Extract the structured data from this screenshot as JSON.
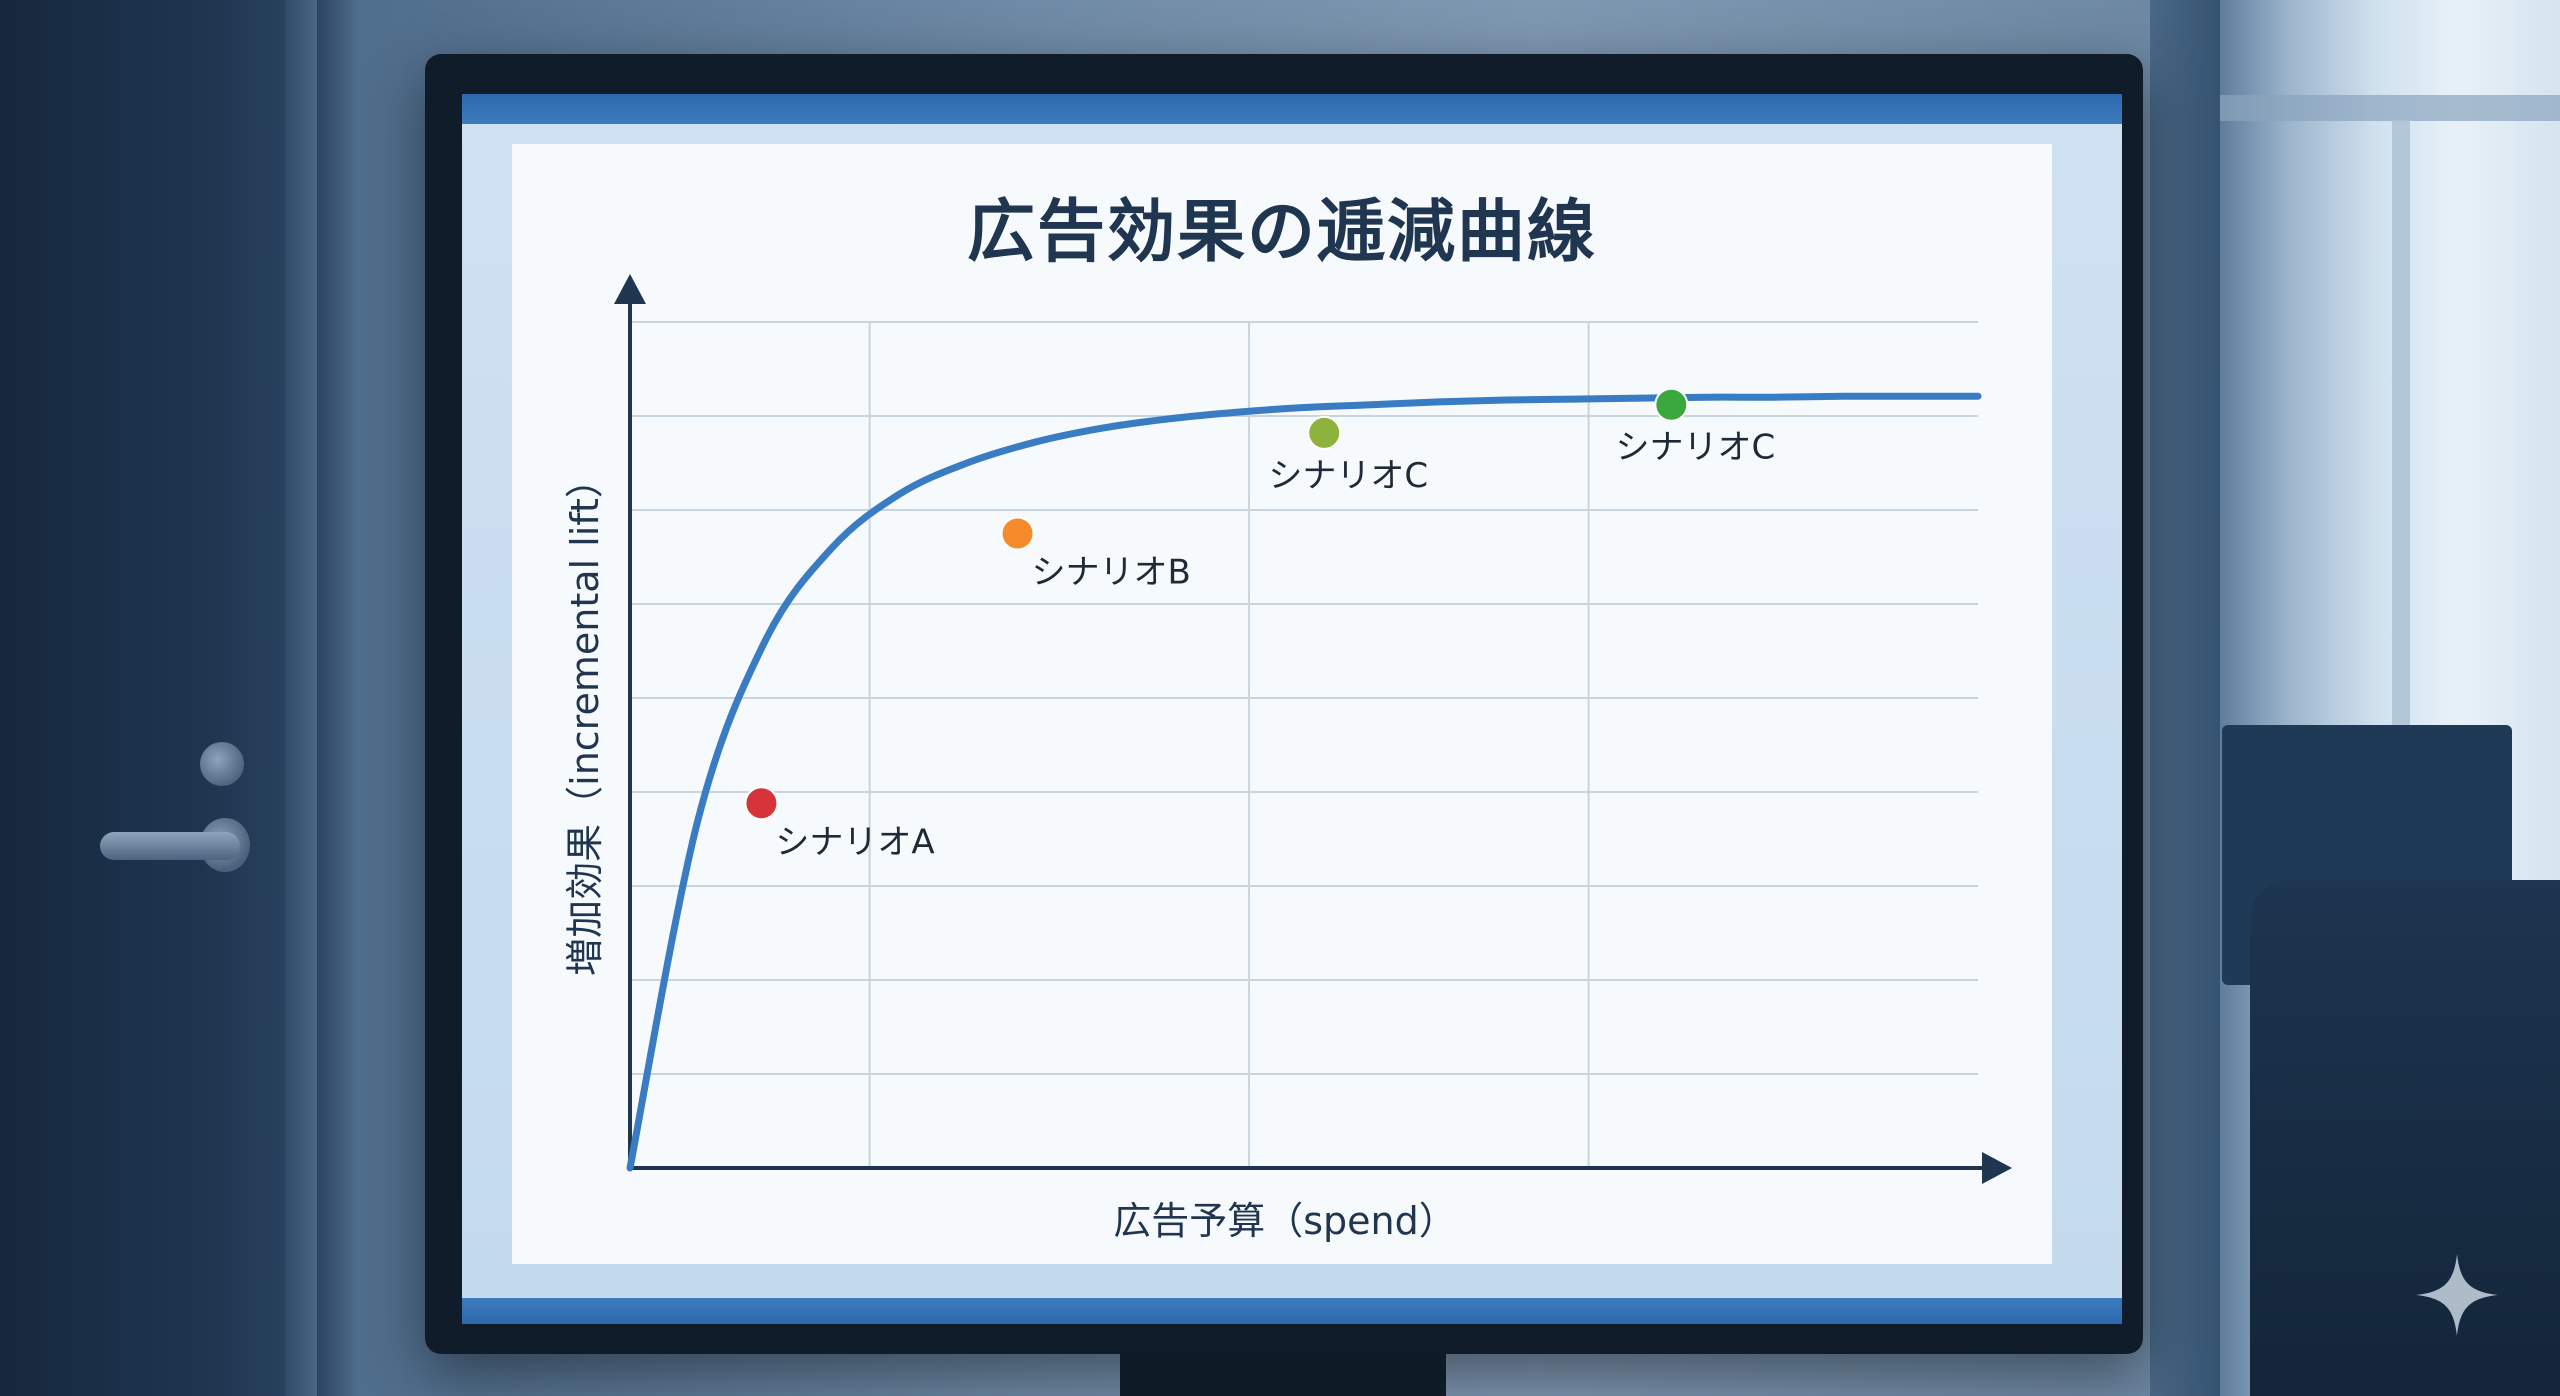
{
  "chart_data": {
    "type": "line",
    "title": "広告効果の逓減曲線",
    "xlabel": "広告予算（spend）",
    "ylabel": "増加効果（incremental lift）",
    "xlim": [
      0,
      8
    ],
    "ylim": [
      0,
      9
    ],
    "grid": true,
    "show_tick_labels": false,
    "series": [
      {
        "x": [
          0,
          0.4,
          0.8,
          1.2,
          1.6,
          2.0,
          2.4,
          2.8,
          3.2,
          3.6,
          4.0,
          4.4,
          4.8,
          5.2,
          5.6,
          6.0,
          6.4,
          6.8,
          7.2,
          7.6,
          8.0
        ],
        "values": [
          0,
          3.68,
          5.6,
          6.6,
          7.17,
          7.5,
          7.72,
          7.87,
          7.97,
          8.04,
          8.09,
          8.12,
          8.15,
          8.17,
          8.18,
          8.19,
          8.2,
          8.2,
          8.21,
          8.21,
          8.21
        ],
        "color": "#3a7cc3"
      }
    ],
    "annotations": [
      {
        "label": "シナリオA",
        "x": 0.78,
        "y": 3.88,
        "color": "#d7333a",
        "label_pos": "below-right"
      },
      {
        "label": "シナリオB",
        "x": 2.3,
        "y": 6.75,
        "color": "#f68a2a",
        "label_pos": "below-right"
      },
      {
        "label": "シナリオC",
        "x": 4.12,
        "y": 7.82,
        "color": "#8db33c",
        "label_pos": "below"
      },
      {
        "label": "シナリオC",
        "x": 6.18,
        "y": 8.12,
        "color": "#3aa83d",
        "label_pos": "below"
      }
    ]
  },
  "colors": {
    "axis": "#1f3550",
    "grid": "#c9d5de",
    "line": "#3a7cc3",
    "title": "#1f3550",
    "screen_accent": "#2b68ac"
  }
}
